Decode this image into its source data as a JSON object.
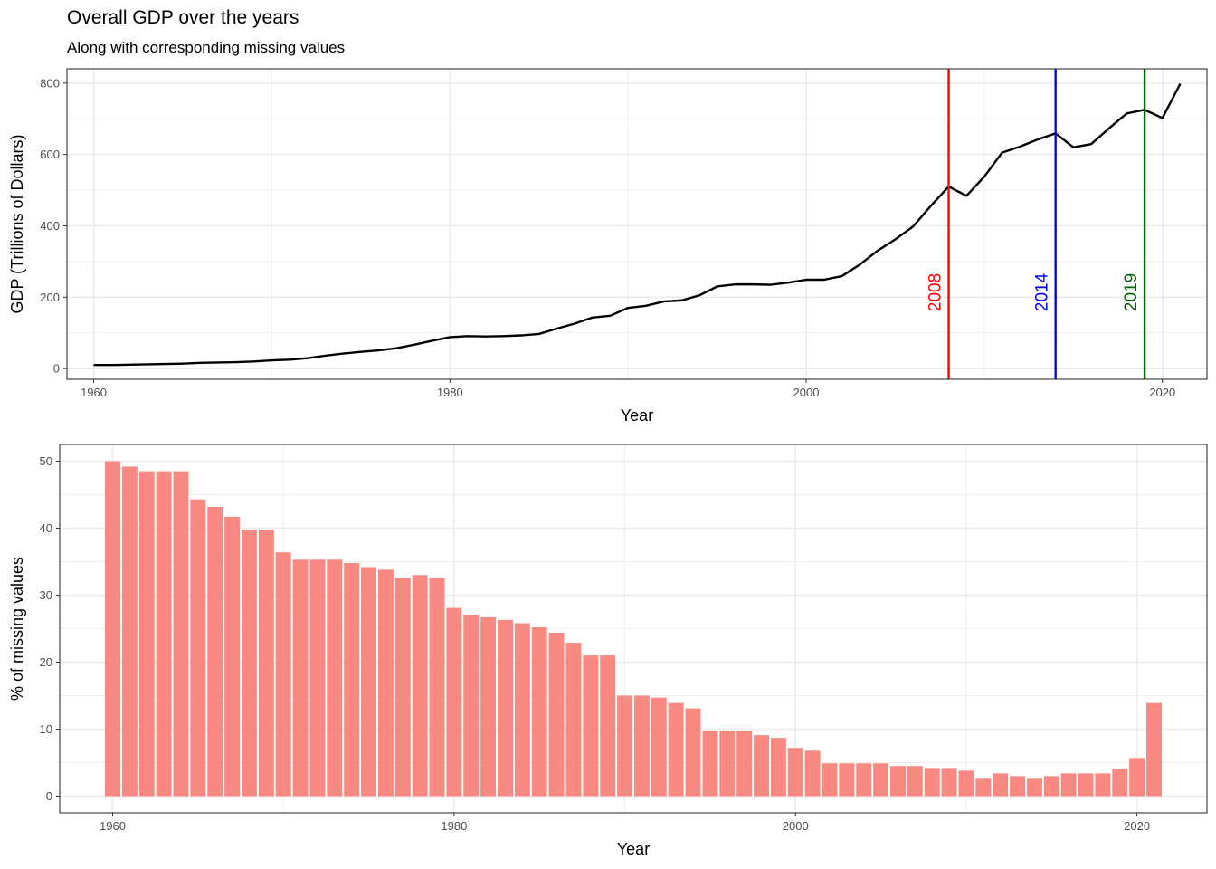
{
  "title": "Overall GDP over the years",
  "subtitle": "Along with corresponding missing values",
  "colors": {
    "line": "#000000",
    "bar": "#F8766D",
    "v2008": "#FF0000",
    "v2014": "#0000FF",
    "v2019": "#006400",
    "grid": "#EBEBEB"
  },
  "chart_data": [
    {
      "type": "line",
      "xlabel": "Year",
      "ylabel": "GDP (Trillions of Dollars)",
      "xlim": [
        1958.5,
        2022.5
      ],
      "ylim": [
        -30,
        840
      ],
      "xticks": [
        1960,
        1980,
        2000,
        2020
      ],
      "xtick_labels": [
        "1960",
        "1980",
        "2000",
        "2020"
      ],
      "yticks": [
        0,
        200,
        400,
        600,
        800
      ],
      "ytick_labels": [
        "0",
        "200",
        "400",
        "600",
        "800"
      ],
      "grid": true,
      "x": [
        1960,
        1961,
        1962,
        1963,
        1964,
        1965,
        1966,
        1967,
        1968,
        1969,
        1970,
        1971,
        1972,
        1973,
        1974,
        1975,
        1976,
        1977,
        1978,
        1979,
        1980,
        1981,
        1982,
        1983,
        1984,
        1985,
        1986,
        1987,
        1988,
        1989,
        1990,
        1991,
        1992,
        1993,
        1994,
        1995,
        1996,
        1997,
        1998,
        1999,
        2000,
        2001,
        2002,
        2003,
        2004,
        2005,
        2006,
        2007,
        2008,
        2009,
        2010,
        2011,
        2012,
        2013,
        2014,
        2015,
        2016,
        2017,
        2018,
        2019,
        2020,
        2021
      ],
      "y": [
        10,
        10,
        11,
        12,
        13,
        14,
        16,
        17,
        18,
        20,
        23,
        25,
        29,
        36,
        42,
        47,
        51,
        57,
        67,
        78,
        88,
        91,
        90,
        91,
        93,
        97,
        112,
        126,
        143,
        148,
        170,
        176,
        188,
        191,
        205,
        230,
        236,
        236,
        235,
        241,
        249,
        249,
        259,
        291,
        330,
        362,
        398,
        456,
        510,
        484,
        538,
        605,
        622,
        642,
        659,
        620,
        629,
        673,
        715,
        725,
        702,
        798
      ],
      "annotations": [
        {
          "x": 2008,
          "label": "2008"
        },
        {
          "x": 2014,
          "label": "2014"
        },
        {
          "x": 2019,
          "label": "2019"
        }
      ]
    },
    {
      "type": "bar",
      "xlabel": "Year",
      "ylabel": "% of missing values",
      "xlim": [
        1956.9,
        2024.1
      ],
      "ylim": [
        -2.5,
        52.5
      ],
      "xticks": [
        1960,
        1980,
        2000,
        2020
      ],
      "xtick_labels": [
        "1960",
        "1980",
        "2000",
        "2020"
      ],
      "yticks": [
        0,
        10,
        20,
        30,
        40,
        50
      ],
      "ytick_labels": [
        "0",
        "10",
        "20",
        "30",
        "40",
        "50"
      ],
      "grid": true,
      "x": [
        1960,
        1961,
        1962,
        1963,
        1964,
        1965,
        1966,
        1967,
        1968,
        1969,
        1970,
        1971,
        1972,
        1973,
        1974,
        1975,
        1976,
        1977,
        1978,
        1979,
        1980,
        1981,
        1982,
        1983,
        1984,
        1985,
        1986,
        1987,
        1988,
        1989,
        1990,
        1991,
        1992,
        1993,
        1994,
        1995,
        1996,
        1997,
        1998,
        1999,
        2000,
        2001,
        2002,
        2003,
        2004,
        2005,
        2006,
        2007,
        2008,
        2009,
        2010,
        2011,
        2012,
        2013,
        2014,
        2015,
        2016,
        2017,
        2018,
        2019,
        2020,
        2021
      ],
      "values": [
        50.0,
        49.2,
        48.5,
        48.5,
        48.5,
        44.3,
        43.2,
        41.7,
        39.8,
        39.8,
        36.4,
        35.3,
        35.3,
        35.3,
        34.8,
        34.2,
        33.8,
        32.6,
        33.0,
        32.6,
        28.1,
        27.1,
        26.7,
        26.3,
        25.8,
        25.2,
        24.4,
        22.9,
        21.0,
        21.0,
        15.0,
        15.0,
        14.7,
        13.9,
        13.1,
        9.8,
        9.8,
        9.8,
        9.1,
        8.7,
        7.2,
        6.8,
        4.9,
        4.9,
        4.9,
        4.9,
        4.5,
        4.5,
        4.2,
        4.2,
        3.8,
        2.6,
        3.4,
        3.0,
        2.6,
        3.0,
        3.4,
        3.4,
        3.4,
        4.1,
        5.7,
        13.9
      ]
    }
  ]
}
